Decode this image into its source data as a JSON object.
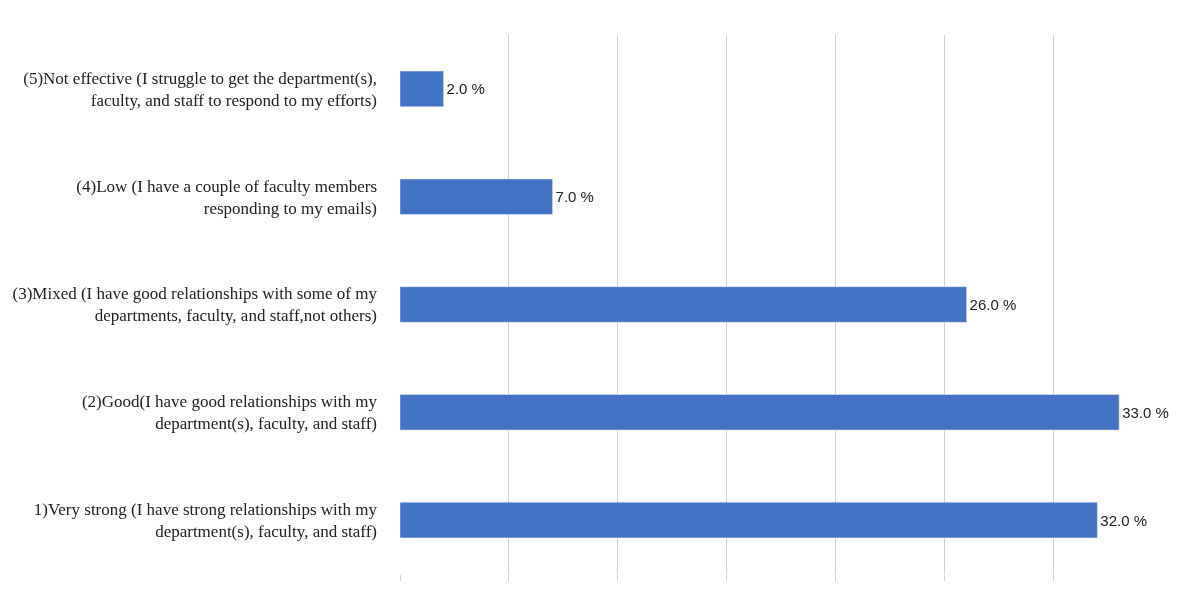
{
  "chart_data": {
    "type": "bar",
    "orientation": "horizontal",
    "categories": [
      "(5)Not effective (I struggle to get the department(s),\nfaculty, and staff to respond to my efforts)",
      "(4)Low (I have a couple of faculty members\nresponding to my emails)",
      "(3)Mixed (I have good relationships with some of my\ndepartments, faculty, and staff,not others)",
      "(2)Good(I have good relationships with my\ndepartment(s), faculty, and staff)",
      "1)Very strong (I have strong relationships with my\ndepartment(s), faculty, and staff)"
    ],
    "values": [
      2,
      7,
      26,
      33,
      32
    ],
    "value_labels": [
      "2.0 %",
      "7.0 %",
      "26.0 %",
      "33.0 %",
      "32.0 %"
    ],
    "color": "#4472c4",
    "grid": "x",
    "tick_labels": "y",
    "legend": false
  }
}
